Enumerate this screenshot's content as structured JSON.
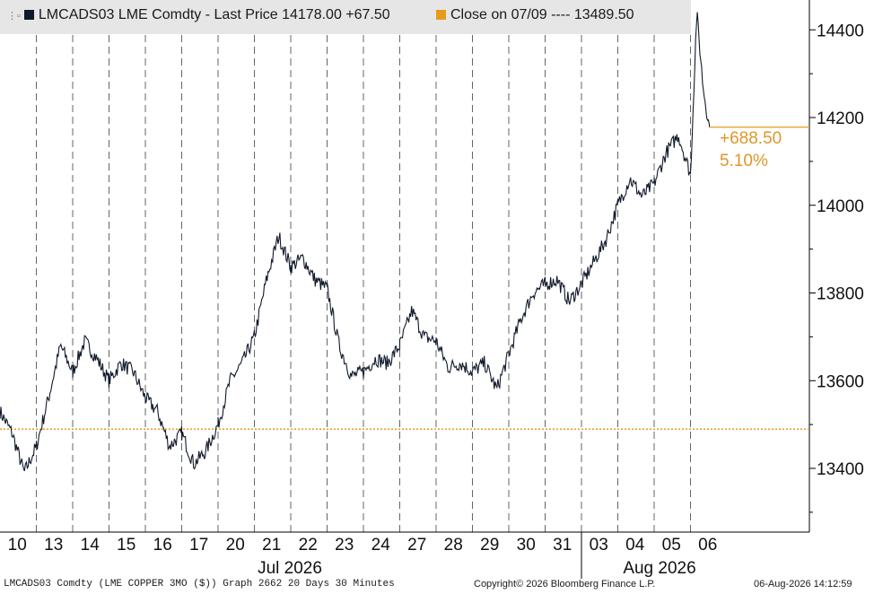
{
  "legend": {
    "series_label": "LMCADS03 LME Comdty - Last Price 14178.00  +67.50",
    "series_color": "#10192a",
    "ref_label": "Close on 07/09 ---- 13489.50",
    "ref_color": "#e89a1c"
  },
  "annotation": {
    "change": "+688.50",
    "pct": "5.10%"
  },
  "footer": {
    "left": "LMCADS03 Comdty (LME COPPER    3MO ($)) Graph 2662 20 Days 30 Minutes",
    "center": "Copyright© 2026 Bloomberg Finance L.P.",
    "right": "06-Aug-2026 14:12:59"
  },
  "chart_data": {
    "type": "line",
    "y_ticks": [
      13400,
      13600,
      13800,
      14000,
      14200,
      14400
    ],
    "ylim": [
      13300,
      14480
    ],
    "x_tick_labels": [
      "10",
      "13",
      "14",
      "15",
      "16",
      "17",
      "20",
      "21",
      "22",
      "23",
      "24",
      "27",
      "28",
      "29",
      "30",
      "31",
      "03",
      "04",
      "05",
      "06"
    ],
    "month_labels": [
      "Jul 2026",
      "Aug 2026"
    ],
    "reference_line": {
      "label": "Close on 07/09",
      "value": 13489.5
    },
    "last_value": 14178.0,
    "series": [
      {
        "name": "LMCADS03 LME Comdty - Last Price",
        "day_values": [
          [
            13530,
            13480,
            13390,
            13450
          ],
          [
            13450,
            13560,
            13680,
            13620
          ],
          [
            13620,
            13690,
            13650,
            13600
          ],
          [
            13600,
            13640,
            13620,
            13560
          ],
          [
            13560,
            13530,
            13450,
            13480
          ],
          [
            13480,
            13410,
            13440,
            13500
          ],
          [
            13500,
            13600,
            13640,
            13700
          ],
          [
            13700,
            13830,
            13930,
            13860
          ],
          [
            13860,
            13880,
            13830,
            13810
          ],
          [
            13810,
            13680,
            13610,
            13620
          ],
          [
            13620,
            13650,
            13640,
            13680
          ],
          [
            13680,
            13760,
            13700,
            13690
          ],
          [
            13690,
            13630,
            13640,
            13620
          ],
          [
            13620,
            13640,
            13580,
            13660
          ],
          [
            13660,
            13740,
            13800,
            13820
          ],
          [
            13820,
            13830,
            13780,
            13820
          ],
          [
            13820,
            13870,
            13920,
            14000
          ],
          [
            14000,
            14060,
            14020,
            14050
          ],
          [
            14050,
            14120,
            14160,
            14070
          ],
          [
            14070,
            14440,
            14270,
            14178
          ]
        ]
      }
    ]
  }
}
